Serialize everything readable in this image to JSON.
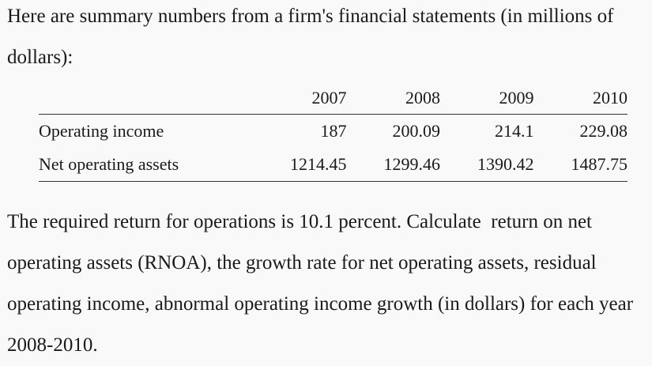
{
  "intro": "Here are summary numbers from a firm's financial statements (in millions of dollars):",
  "table": {
    "corner": "",
    "years": [
      "2007",
      "2008",
      "2009",
      "2010"
    ],
    "rows": [
      {
        "label": "Operating income",
        "values": [
          "187",
          "200.09",
          "214.1",
          "229.08"
        ]
      },
      {
        "label": "Net operating assets",
        "values": [
          "1214.45",
          "1299.46",
          "1390.42",
          "1487.75"
        ]
      }
    ]
  },
  "question": "The required return for operations is 10.1 percent. Calculate  return on net operating assets (RNOA), the growth rate for net operating assets, residual operating income, abnormal operating income growth (in dollars) for each year 2008-2010."
}
